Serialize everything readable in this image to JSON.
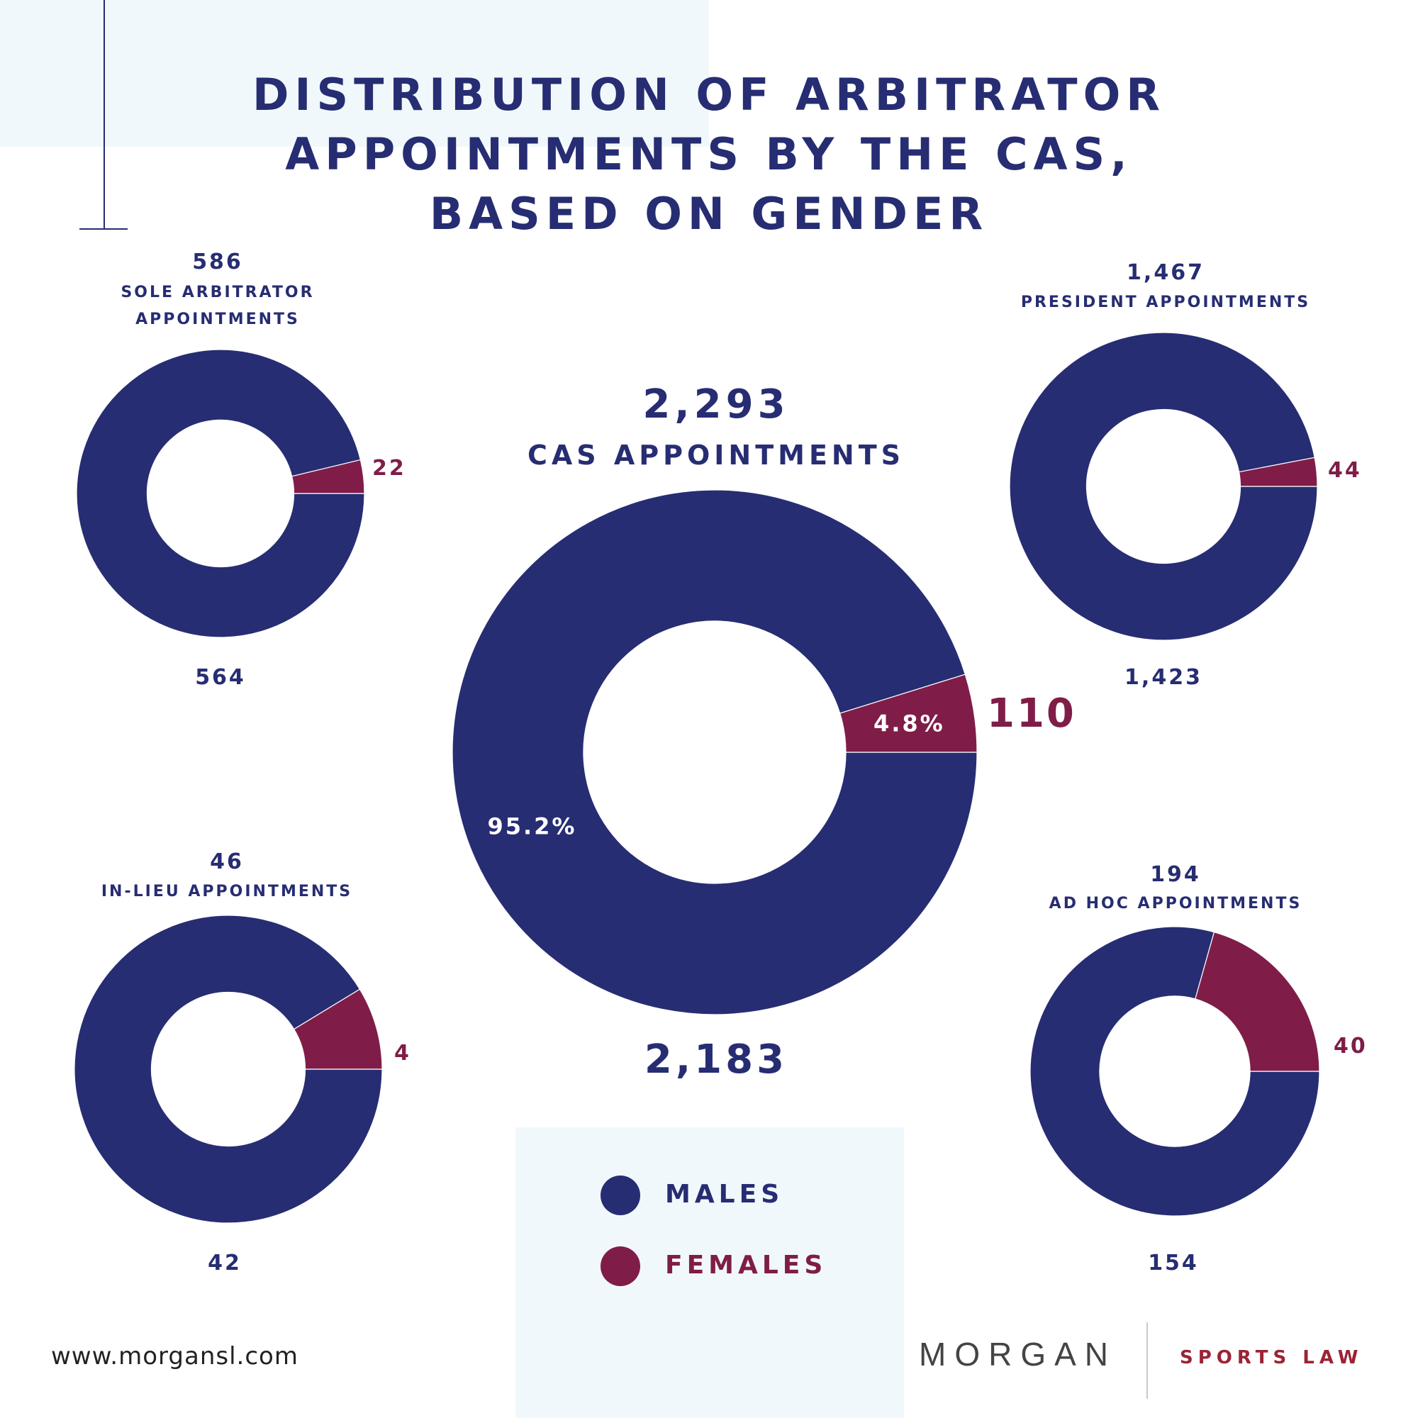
{
  "title_lines": [
    "DISTRIBUTION OF ARBITRATOR",
    "APPOINTMENTS BY THE CAS,",
    "BASED ON GENDER"
  ],
  "colors": {
    "males": "#272d72",
    "females": "#7f1d48",
    "background_tint": "#f1f8fb"
  },
  "legend": {
    "males": "MALES",
    "females": "FEMALES"
  },
  "footer": {
    "website": "www.morgansl.com",
    "logo_name": "MORGAN",
    "logo_tagline": "SPORTS LAW"
  },
  "chart_data": [
    {
      "type": "pie",
      "id": "cas",
      "total_label": "2,293",
      "title": "CAS APPOINTMENTS",
      "categories": [
        "Males",
        "Females"
      ],
      "values": [
        2183,
        110
      ],
      "value_labels": [
        "2,183",
        "110"
      ],
      "percent_labels": [
        "95.2%",
        "4.8%"
      ]
    },
    {
      "type": "pie",
      "id": "sole",
      "total_label": "586",
      "title": [
        "SOLE ARBITRATOR",
        "APPOINTMENTS"
      ],
      "categories": [
        "Males",
        "Females"
      ],
      "values": [
        564,
        22
      ],
      "value_labels": [
        "564",
        "22"
      ]
    },
    {
      "type": "pie",
      "id": "president",
      "total_label": "1,467",
      "title": "PRESIDENT APPOINTMENTS",
      "categories": [
        "Males",
        "Females"
      ],
      "values": [
        1423,
        44
      ],
      "value_labels": [
        "1,423",
        "44"
      ]
    },
    {
      "type": "pie",
      "id": "inlieu",
      "total_label": "46",
      "title": "IN-LIEU APPOINTMENTS",
      "categories": [
        "Males",
        "Females"
      ],
      "values": [
        42,
        4
      ],
      "value_labels": [
        "42",
        "4"
      ]
    },
    {
      "type": "pie",
      "id": "adhoc",
      "total_label": "194",
      "title": "AD HOC APPOINTMENTS",
      "categories": [
        "Males",
        "Females"
      ],
      "values": [
        154,
        40
      ],
      "value_labels": [
        "154",
        "40"
      ]
    }
  ]
}
